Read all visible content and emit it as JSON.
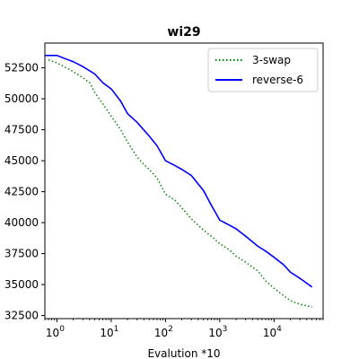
{
  "chart_data": {
    "type": "line",
    "title": "wi29",
    "xlabel": "Evalution *10",
    "ylabel": "",
    "x_scale": "log",
    "xlim": [
      0.6,
      80000
    ],
    "ylim": [
      32250,
      54500
    ],
    "grid": false,
    "legend_position": "top-right",
    "x_ticks": [
      1,
      10,
      100,
      1000,
      10000
    ],
    "x_tick_labels": [
      {
        "base": "10",
        "exp": "0"
      },
      {
        "base": "10",
        "exp": "1"
      },
      {
        "base": "10",
        "exp": "2"
      },
      {
        "base": "10",
        "exp": "3"
      },
      {
        "base": "10",
        "exp": "4"
      }
    ],
    "y_ticks": [
      32500,
      35000,
      37500,
      40000,
      42500,
      45000,
      47500,
      50000,
      52500
    ],
    "y_tick_labels": [
      "32500",
      "35000",
      "37500",
      "40000",
      "42500",
      "45000",
      "47500",
      "50000",
      "52500"
    ],
    "series": [
      {
        "name": "3-swap",
        "color": "#008000",
        "style": "dotted",
        "x": [
          0.7,
          1,
          1.5,
          2,
          3,
          4,
          5,
          7,
          10,
          15,
          20,
          30,
          40,
          50,
          70,
          100,
          150,
          200,
          300,
          500,
          700,
          1000,
          1500,
          2000,
          3000,
          5000,
          7000,
          10000,
          15000,
          20000,
          30000,
          50000
        ],
        "y": [
          53150,
          52900,
          52500,
          52200,
          51700,
          51300,
          50500,
          49600,
          48600,
          47500,
          46500,
          45300,
          44700,
          44300,
          43600,
          42300,
          41800,
          41200,
          40300,
          39400,
          38900,
          38300,
          37800,
          37300,
          36800,
          36100,
          35300,
          34700,
          34100,
          33700,
          33400,
          33200
        ]
      },
      {
        "name": "reverse-6",
        "color": "#0000ff",
        "style": "solid",
        "x": [
          0.6,
          1,
          1.5,
          2,
          3,
          5,
          7,
          10,
          15,
          20,
          30,
          50,
          70,
          100,
          150,
          200,
          300,
          500,
          700,
          1000,
          1500,
          2000,
          3000,
          5000,
          7000,
          10000,
          15000,
          20000,
          30000,
          50000
        ],
        "y": [
          53500,
          53500,
          53200,
          53000,
          52600,
          52000,
          51300,
          50800,
          49800,
          48800,
          48100,
          47000,
          46200,
          45000,
          44600,
          44300,
          43800,
          42600,
          41400,
          40200,
          39800,
          39500,
          38900,
          38100,
          37700,
          37200,
          36600,
          36000,
          35500,
          34800
        ]
      }
    ]
  }
}
